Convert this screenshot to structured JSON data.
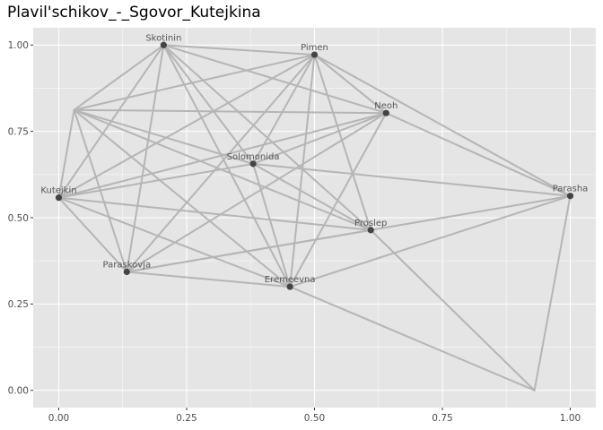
{
  "chart_data": {
    "type": "network",
    "title": "Plavil'schikov_-_Sgovor_Kutejkina",
    "xlabel": "",
    "ylabel": "",
    "xlim": [
      -0.05,
      1.05
    ],
    "ylim": [
      -0.05,
      1.05
    ],
    "x_ticks": [
      0.0,
      0.25,
      0.5,
      0.75,
      1.0
    ],
    "y_ticks": [
      0.0,
      0.25,
      0.5,
      0.75,
      1.0
    ],
    "x_tick_labels": [
      "0.00",
      "0.25",
      "0.50",
      "0.75",
      "1.00"
    ],
    "y_tick_labels": [
      "0.00",
      "0.25",
      "0.50",
      "0.75",
      "1.00"
    ],
    "grid": true,
    "background": "#e5e5e5",
    "grid_color": "#ffffff",
    "edge_color": "#b5b5b5",
    "node_color": "#444444",
    "nodes": [
      {
        "id": "Skotinin",
        "label": "Skotinin",
        "x": 0.205,
        "y": 1.0
      },
      {
        "id": "Pimen",
        "label": "Pimen",
        "x": 0.5,
        "y": 0.972
      },
      {
        "id": "Neoh",
        "label": "Neoh",
        "x": 0.64,
        "y": 0.803
      },
      {
        "id": "Solomonida",
        "label": "Solomonida",
        "x": 0.38,
        "y": 0.656
      },
      {
        "id": "Kutejkin",
        "label": "Kutejkin",
        "x": 0.0,
        "y": 0.558
      },
      {
        "id": "Parasha",
        "label": "Parasha",
        "x": 1.0,
        "y": 0.563
      },
      {
        "id": "Proslep",
        "label": "Proslep",
        "x": 0.61,
        "y": 0.464
      },
      {
        "id": "Paraskovja",
        "label": "Paraskovja",
        "x": 0.133,
        "y": 0.343
      },
      {
        "id": "Eremeevna",
        "label": "Eremeevna",
        "x": 0.452,
        "y": 0.3
      },
      {
        "id": "n_a",
        "label": "",
        "x": 0.03,
        "y": 0.812
      },
      {
        "id": "n_b",
        "label": "",
        "x": 0.93,
        "y": 0.0
      }
    ],
    "edges": [
      [
        "n_a",
        "Skotinin"
      ],
      [
        "n_a",
        "Pimen"
      ],
      [
        "n_a",
        "Neoh"
      ],
      [
        "n_a",
        "Proslep"
      ],
      [
        "n_a",
        "Eremeevna"
      ],
      [
        "n_a",
        "Paraskovja"
      ],
      [
        "n_a",
        "Kutejkin"
      ],
      [
        "n_a",
        "Solomonida"
      ],
      [
        "Skotinin",
        "Pimen"
      ],
      [
        "Skotinin",
        "Neoh"
      ],
      [
        "Skotinin",
        "Kutejkin"
      ],
      [
        "Skotinin",
        "Paraskovja"
      ],
      [
        "Skotinin",
        "Eremeevna"
      ],
      [
        "Skotinin",
        "Proslep"
      ],
      [
        "Skotinin",
        "Solomonida"
      ],
      [
        "Pimen",
        "Neoh"
      ],
      [
        "Pimen",
        "Kutejkin"
      ],
      [
        "Pimen",
        "Paraskovja"
      ],
      [
        "Pimen",
        "Eremeevna"
      ],
      [
        "Pimen",
        "Proslep"
      ],
      [
        "Pimen",
        "Solomonida"
      ],
      [
        "Pimen",
        "Parasha"
      ],
      [
        "Neoh",
        "Kutejkin"
      ],
      [
        "Neoh",
        "Paraskovja"
      ],
      [
        "Neoh",
        "Eremeevna"
      ],
      [
        "Neoh",
        "Parasha"
      ],
      [
        "Kutejkin",
        "Solomonida"
      ],
      [
        "Kutejkin",
        "Proslep"
      ],
      [
        "Kutejkin",
        "Eremeevna"
      ],
      [
        "Kutejkin",
        "Paraskovja"
      ],
      [
        "Solomonida",
        "Parasha"
      ],
      [
        "Solomonida",
        "Eremeevna"
      ],
      [
        "Solomonida",
        "Proslep"
      ],
      [
        "Solomonida",
        "Neoh"
      ],
      [
        "Paraskovja",
        "Parasha"
      ],
      [
        "Paraskovja",
        "Eremeevna"
      ],
      [
        "Paraskovja",
        "Proslep"
      ],
      [
        "Eremeevna",
        "Parasha"
      ],
      [
        "Eremeevna",
        "n_b"
      ],
      [
        "Parasha",
        "n_b"
      ],
      [
        "Proslep",
        "n_b"
      ]
    ]
  }
}
